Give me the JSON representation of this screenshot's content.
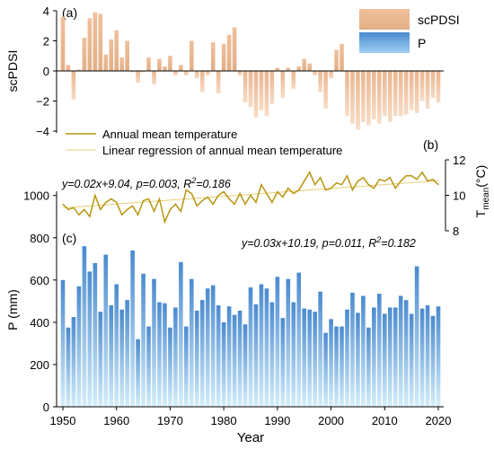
{
  "chart_data": [
    {
      "panel": "(a)",
      "type": "bar",
      "ylabel": "scPDSI",
      "ylim": [
        -4,
        4
      ],
      "yticks": [
        -4,
        -2,
        0,
        2,
        4
      ],
      "legend": [
        "scPDSI",
        "P"
      ],
      "legend_colors": {
        "scPDSI": "#e9b88a",
        "P": "#5b9bd5"
      },
      "x": [
        1950,
        1951,
        1952,
        1953,
        1954,
        1955,
        1956,
        1957,
        1958,
        1959,
        1960,
        1961,
        1962,
        1963,
        1964,
        1965,
        1966,
        1967,
        1968,
        1969,
        1970,
        1971,
        1972,
        1973,
        1974,
        1975,
        1976,
        1977,
        1978,
        1979,
        1980,
        1981,
        1982,
        1983,
        1984,
        1985,
        1986,
        1987,
        1988,
        1989,
        1990,
        1991,
        1992,
        1993,
        1994,
        1995,
        1996,
        1997,
        1998,
        1999,
        2000,
        2001,
        2002,
        2003,
        2004,
        2005,
        2006,
        2007,
        2008,
        2009,
        2010,
        2011,
        2012,
        2013,
        2014,
        2015,
        2016,
        2017,
        2018,
        2019,
        2020
      ],
      "values": [
        3.6,
        0.4,
        -1.9,
        0.1,
        2.2,
        3.5,
        3.9,
        3.8,
        1.1,
        2.1,
        2.7,
        0.9,
        2.0,
        -0.1,
        -0.8,
        -0.1,
        0.9,
        -0.9,
        0.8,
        0.3,
        1.0,
        -0.3,
        0.4,
        -0.3,
        2.0,
        -0.5,
        -1.4,
        -0.3,
        1.9,
        -1.5,
        1.8,
        2.4,
        2.9,
        -0.3,
        -2.1,
        -2.4,
        -3.1,
        -2.6,
        -3.0,
        -2.2,
        0.2,
        -1.8,
        0.2,
        -1.2,
        0.3,
        0.8,
        0.5,
        -0.3,
        -1.4,
        -2.5,
        -0.5,
        1.4,
        1.8,
        -3.0,
        -3.5,
        -3.9,
        -3.4,
        -3.6,
        -3.2,
        -3.5,
        -3.0,
        -3.4,
        -3.0,
        -3.0,
        -2.9,
        -2.6,
        -2.8,
        -2.0,
        -2.5,
        -1.8,
        -2.1
      ]
    },
    {
      "panel": "(b)",
      "type": "line",
      "ylabel_main": "T",
      "ylabel_sub": "mean",
      "ylabel_unit": "(°C)",
      "ylim": [
        8,
        12
      ],
      "yticks": [
        8,
        10,
        12
      ],
      "legend": [
        "Annual mean temperature",
        "Linear regression of annual mean temperature"
      ],
      "annotation_p": {
        "pre": "y=0.02x+9.04, p=0.003, ",
        "r": "R",
        "sup": "2",
        "post": "=0.186"
      },
      "annotation_t": {
        "pre": "y=0.03x+10.19, p=0.011, ",
        "r": "R",
        "sup": "2",
        "post": "=0.182"
      },
      "regression": {
        "slope": 0.0219,
        "intercept_1950": 9.29
      },
      "x": [
        1950,
        1951,
        1952,
        1953,
        1954,
        1955,
        1956,
        1957,
        1958,
        1959,
        1960,
        1961,
        1962,
        1963,
        1964,
        1965,
        1966,
        1967,
        1968,
        1969,
        1970,
        1971,
        1972,
        1973,
        1974,
        1975,
        1976,
        1977,
        1978,
        1979,
        1980,
        1981,
        1982,
        1983,
        1984,
        1985,
        1986,
        1987,
        1988,
        1989,
        1990,
        1991,
        1992,
        1993,
        1994,
        1995,
        1996,
        1997,
        1998,
        1999,
        2000,
        2001,
        2002,
        2003,
        2004,
        2005,
        2006,
        2007,
        2008,
        2009,
        2010,
        2011,
        2012,
        2013,
        2014,
        2015,
        2016,
        2017,
        2018,
        2019,
        2020
      ],
      "values": [
        9.5,
        9.2,
        9.3,
        8.9,
        9.2,
        8.8,
        10.0,
        9.2,
        9.6,
        9.8,
        9.6,
        8.9,
        9.2,
        9.4,
        8.9,
        9.7,
        9.8,
        9.1,
        9.8,
        8.5,
        9.2,
        9.5,
        9.1,
        10.3,
        10.1,
        9.4,
        9.7,
        9.9,
        9.5,
        10.0,
        10.2,
        9.8,
        9.5,
        10.1,
        9.5,
        10.0,
        9.6,
        10.6,
        10.1,
        9.6,
        10.2,
        9.9,
        10.4,
        10.1,
        10.3,
        10.8,
        11.3,
        10.6,
        11.0,
        10.3,
        10.4,
        10.7,
        10.6,
        11.1,
        10.3,
        10.8,
        11.0,
        10.6,
        10.4,
        10.9,
        10.8,
        11.0,
        10.4,
        10.8,
        11.1,
        11.1,
        10.9,
        11.3,
        10.8,
        10.9,
        10.6
      ]
    },
    {
      "panel": "(c)",
      "type": "bar",
      "xlabel": "Year",
      "ylabel": "P (mm)",
      "ylim": [
        0,
        1000
      ],
      "yticks": [
        0,
        200,
        400,
        600,
        800,
        1000
      ],
      "xticks": [
        1950,
        1960,
        1970,
        1980,
        1990,
        2000,
        2010,
        2020
      ],
      "x": [
        1950,
        1951,
        1952,
        1953,
        1954,
        1955,
        1956,
        1957,
        1958,
        1959,
        1960,
        1961,
        1962,
        1963,
        1964,
        1965,
        1966,
        1967,
        1968,
        1969,
        1970,
        1971,
        1972,
        1973,
        1974,
        1975,
        1976,
        1977,
        1978,
        1979,
        1980,
        1981,
        1982,
        1983,
        1984,
        1985,
        1986,
        1987,
        1988,
        1989,
        1990,
        1991,
        1992,
        1993,
        1994,
        1995,
        1996,
        1997,
        1998,
        1999,
        2000,
        2001,
        2002,
        2003,
        2004,
        2005,
        2006,
        2007,
        2008,
        2009,
        2010,
        2011,
        2012,
        2013,
        2014,
        2015,
        2016,
        2017,
        2018,
        2019,
        2020
      ],
      "values": [
        600,
        375,
        425,
        570,
        760,
        640,
        680,
        450,
        720,
        480,
        580,
        460,
        505,
        740,
        320,
        630,
        380,
        605,
        495,
        490,
        375,
        470,
        685,
        380,
        605,
        455,
        505,
        560,
        575,
        480,
        400,
        475,
        435,
        455,
        390,
        565,
        485,
        580,
        560,
        495,
        615,
        420,
        605,
        495,
        635,
        465,
        460,
        450,
        545,
        350,
        415,
        380,
        380,
        460,
        540,
        445,
        525,
        375,
        470,
        535,
        440,
        470,
        470,
        525,
        505,
        440,
        665,
        465,
        480,
        430,
        475
      ]
    }
  ]
}
